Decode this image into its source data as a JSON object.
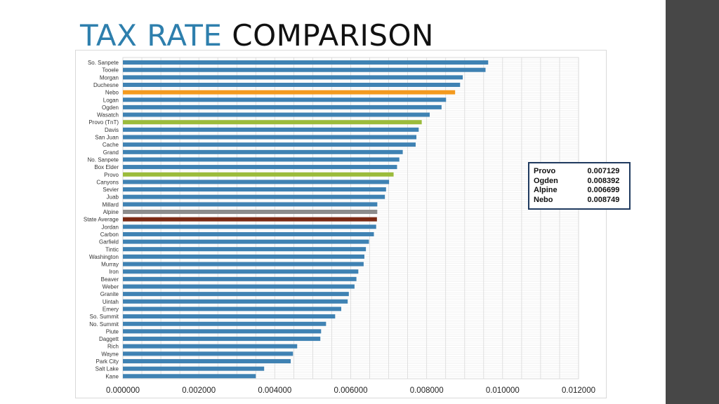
{
  "slide": {
    "title_accent": "TAX RATE",
    "title_main": "COMPARISON"
  },
  "colors": {
    "default_bar": "#3f82b3",
    "nebo": "#f39a1f",
    "provo": "#9bbb3b",
    "alpine": "#8c8c8c",
    "state_average": "#7b2a14",
    "grid": "#d9d9d9",
    "sidebar": "#474747",
    "legend_border": "#1f3a5f"
  },
  "chart_data": {
    "type": "bar",
    "orientation": "horizontal",
    "title": "",
    "xlabel": "",
    "ylabel": "",
    "xlim": [
      0,
      0.012
    ],
    "x_ticks": [
      "0.000000",
      "0.002000",
      "0.004000",
      "0.006000",
      "0.008000",
      "0.010000",
      "0.012000"
    ],
    "grid": true,
    "categories": [
      {
        "name": "So. Sanpete",
        "value": 0.00962,
        "color": "default_bar"
      },
      {
        "name": "Tooele",
        "value": 0.00955,
        "color": "default_bar"
      },
      {
        "name": "Morgan",
        "value": 0.00895,
        "color": "default_bar"
      },
      {
        "name": "Duchesne",
        "value": 0.00888,
        "color": "default_bar"
      },
      {
        "name": "Nebo",
        "value": 0.008749,
        "color": "nebo"
      },
      {
        "name": "Logan",
        "value": 0.00851,
        "color": "default_bar"
      },
      {
        "name": "Ogden",
        "value": 0.008392,
        "color": "default_bar"
      },
      {
        "name": "Wasatch",
        "value": 0.00808,
        "color": "default_bar"
      },
      {
        "name": "Provo (TnT)",
        "value": 0.00787,
        "color": "provo"
      },
      {
        "name": "Davis",
        "value": 0.00779,
        "color": "default_bar"
      },
      {
        "name": "San Juan",
        "value": 0.00773,
        "color": "default_bar"
      },
      {
        "name": "Cache",
        "value": 0.00771,
        "color": "default_bar"
      },
      {
        "name": "Grand",
        "value": 0.00737,
        "color": "default_bar"
      },
      {
        "name": "No. Sanpete",
        "value": 0.00728,
        "color": "default_bar"
      },
      {
        "name": "Box Elder",
        "value": 0.00722,
        "color": "default_bar"
      },
      {
        "name": "Provo",
        "value": 0.007129,
        "color": "provo"
      },
      {
        "name": "Canyons",
        "value": 0.00701,
        "color": "default_bar"
      },
      {
        "name": "Sevier",
        "value": 0.00693,
        "color": "default_bar"
      },
      {
        "name": "Juab",
        "value": 0.0069,
        "color": "default_bar"
      },
      {
        "name": "Millard",
        "value": 0.0067,
        "color": "default_bar"
      },
      {
        "name": "Alpine",
        "value": 0.006699,
        "color": "alpine"
      },
      {
        "name": "State Average",
        "value": 0.00669,
        "color": "state_average"
      },
      {
        "name": "Jordan",
        "value": 0.00667,
        "color": "default_bar"
      },
      {
        "name": "Carbon",
        "value": 0.00661,
        "color": "default_bar"
      },
      {
        "name": "Garfield",
        "value": 0.00648,
        "color": "default_bar"
      },
      {
        "name": "Tintic",
        "value": 0.0064,
        "color": "default_bar"
      },
      {
        "name": "Washington",
        "value": 0.00636,
        "color": "default_bar"
      },
      {
        "name": "Murray",
        "value": 0.00634,
        "color": "default_bar"
      },
      {
        "name": "Iron",
        "value": 0.0062,
        "color": "default_bar"
      },
      {
        "name": "Beaver",
        "value": 0.00615,
        "color": "default_bar"
      },
      {
        "name": "Weber",
        "value": 0.0061,
        "color": "default_bar"
      },
      {
        "name": "Granite",
        "value": 0.00595,
        "color": "default_bar"
      },
      {
        "name": "Uintah",
        "value": 0.00592,
        "color": "default_bar"
      },
      {
        "name": "Emery",
        "value": 0.00575,
        "color": "default_bar"
      },
      {
        "name": "So. Summit",
        "value": 0.00559,
        "color": "default_bar"
      },
      {
        "name": "No. Summit",
        "value": 0.00535,
        "color": "default_bar"
      },
      {
        "name": "Piute",
        "value": 0.00522,
        "color": "default_bar"
      },
      {
        "name": "Daggett",
        "value": 0.0052,
        "color": "default_bar"
      },
      {
        "name": "Rich",
        "value": 0.00459,
        "color": "default_bar"
      },
      {
        "name": "Wayne",
        "value": 0.00448,
        "color": "default_bar"
      },
      {
        "name": "Park City",
        "value": 0.00442,
        "color": "default_bar"
      },
      {
        "name": "Salt Lake",
        "value": 0.00372,
        "color": "default_bar"
      },
      {
        "name": "Kane",
        "value": 0.0035,
        "color": "default_bar"
      }
    ],
    "legend_table": [
      {
        "name": "Provo",
        "value": "0.007129"
      },
      {
        "name": "Ogden",
        "value": "0.008392"
      },
      {
        "name": "Alpine",
        "value": "0.006699"
      },
      {
        "name": "Nebo",
        "value": "0.008749"
      }
    ]
  }
}
